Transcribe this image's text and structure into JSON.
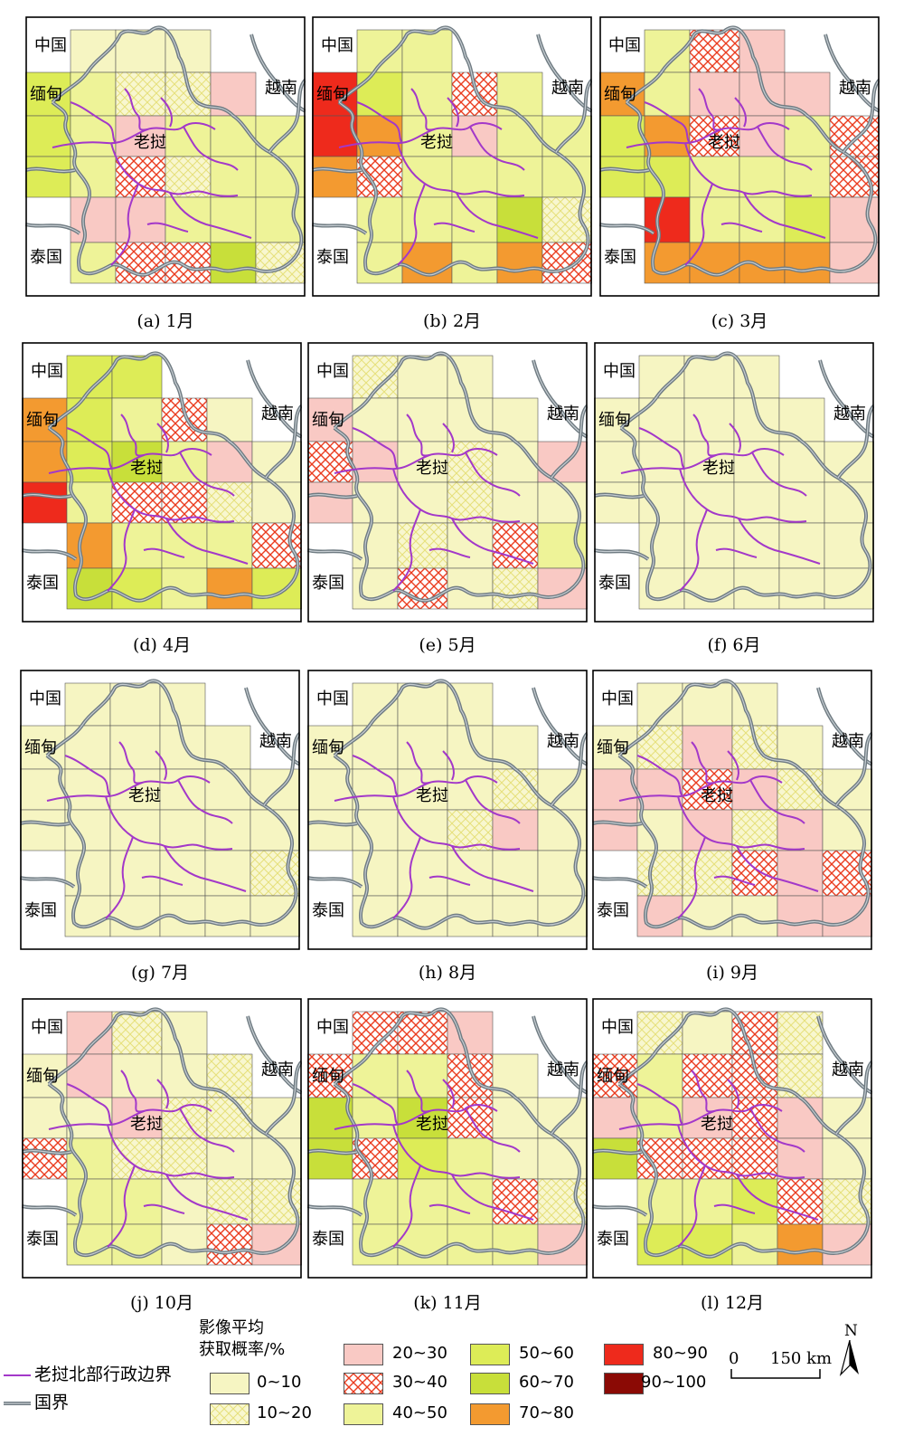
{
  "colors": {
    "0~10": "#f6f5c2",
    "10~20": "#f6f5c2",
    "20~30": "#f9c9c4",
    "30~40": "#ffffff",
    "40~50": "#eef398",
    "50~60": "#ddec57",
    "60~70": "#c8df3a",
    "70~80": "#f39a30",
    "80~90": "#ee2a1c",
    "90~100": "#8b0a05",
    "admin_line": "#a338c9",
    "border_line": "#6f7b82"
  },
  "country_labels": {
    "china": "中国",
    "myanmar": "缅甸",
    "vietnam": "越南",
    "thailand": "泰国",
    "laos": "老挝"
  },
  "panels": [
    {
      "caption": "(a) 1月",
      "classes": [
        "10~20",
        "20~30",
        "30~40",
        "40~50",
        "50~60",
        "60~70"
      ]
    },
    {
      "caption": "(b) 2月",
      "classes": [
        "0~10",
        "20~30",
        "30~40",
        "40~50",
        "50~60",
        "60~70",
        "70~80",
        "80~90"
      ]
    },
    {
      "caption": "(c) 3月",
      "classes": [
        "20~30",
        "30~40",
        "40~50",
        "50~60",
        "60~70",
        "70~80",
        "80~90"
      ]
    },
    {
      "caption": "(d) 4月",
      "classes": [
        "0~10",
        "10~20",
        "30~40",
        "40~50",
        "50~60",
        "60~70",
        "70~80",
        "80~90"
      ]
    },
    {
      "caption": "(e) 5月",
      "classes": [
        "0~10",
        "10~20",
        "20~30",
        "30~40",
        "40~50"
      ]
    },
    {
      "caption": "(f) 6月",
      "classes": [
        "0~10"
      ]
    },
    {
      "caption": "(g) 7月",
      "classes": [
        "0~10",
        "10~20"
      ]
    },
    {
      "caption": "(h) 8月",
      "classes": [
        "0~10",
        "10~20",
        "20~30"
      ]
    },
    {
      "caption": "(i) 9月",
      "classes": [
        "0~10",
        "10~20",
        "20~30",
        "30~40"
      ]
    },
    {
      "caption": "(j) 10月",
      "classes": [
        "0~10",
        "10~20",
        "20~30",
        "30~40",
        "40~50"
      ]
    },
    {
      "caption": "(k) 11月",
      "classes": [
        "0~10",
        "10~20",
        "20~30",
        "30~40",
        "40~50",
        "50~60",
        "60~70"
      ]
    },
    {
      "caption": "(l) 12月",
      "classes": [
        "0~10",
        "10~20",
        "20~30",
        "30~40",
        "40~50",
        "50~60",
        "60~70",
        "70~80"
      ]
    }
  ],
  "legend": {
    "admin_boundary": "老挝北部行政边界",
    "national_border": "国界",
    "title_line1": "影像平均",
    "title_line2": "获取概率/%",
    "classes": [
      "0~10",
      "10~20",
      "20~30",
      "30~40",
      "40~50",
      "50~60",
      "60~70",
      "70~80",
      "80~90",
      "90~100"
    ],
    "scale_zero": "0",
    "scale_max": "150 km",
    "north": "N"
  }
}
